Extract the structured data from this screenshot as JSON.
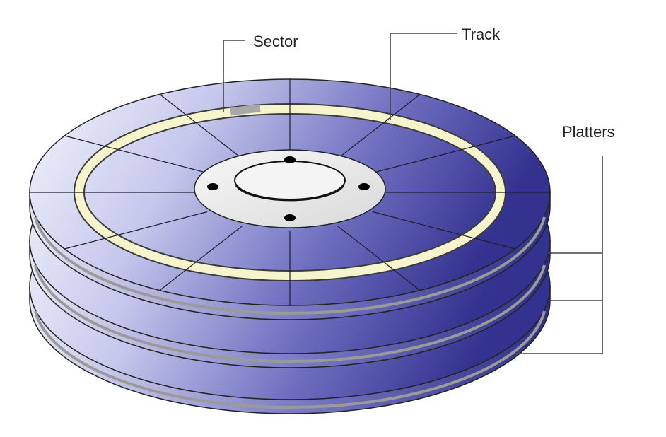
{
  "labels": {
    "sector": "Sector",
    "track": "Track",
    "platters": "Platters"
  },
  "colors": {
    "platter_light": "#eef0fb",
    "platter_mid": "#8a8ad0",
    "platter_dark": "#3a3a9a",
    "track_ring": "#f6f4cc",
    "sector_highlight": "#a8a8a8",
    "hub": "#ececec"
  },
  "diagram": {
    "platter_count": 3,
    "sector_count": 12
  }
}
